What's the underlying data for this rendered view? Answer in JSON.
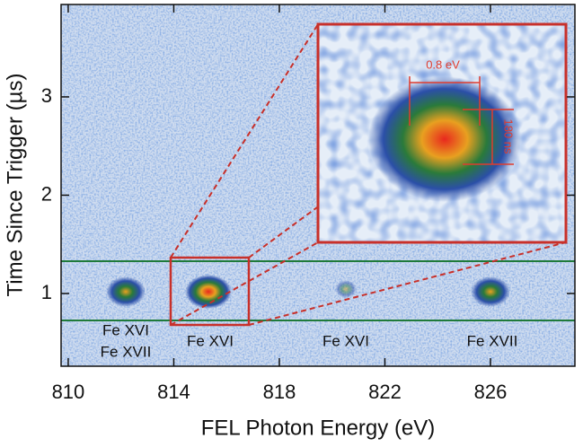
{
  "chart_data": {
    "type": "image",
    "xlabel": "FEL Photon Energy  (eV)",
    "ylabel": "Time Since Trigger  (µs)",
    "xlim": [
      809.73,
      829.2
    ],
    "xticks": [
      810,
      814,
      818,
      822,
      826
    ],
    "ylim": [
      0.26,
      3.94
    ],
    "yticks": [
      1,
      2,
      3
    ],
    "annotations": [
      "Fe XVI",
      "Fe XVII",
      "Fe XVI",
      "Fe XVI",
      "Fe XVII",
      "0.8 eV",
      "180 ns"
    ]
  }
}
